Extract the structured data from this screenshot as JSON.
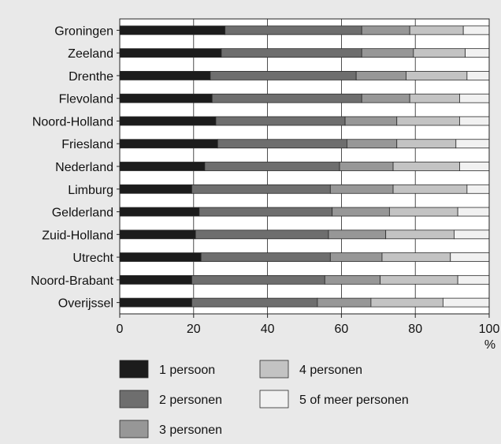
{
  "chart_data": {
    "type": "bar",
    "orientation": "horizontal",
    "stacked": true,
    "categories": [
      "Groningen",
      "Zeeland",
      "Drenthe",
      "Flevoland",
      "Noord-Holland",
      "Friesland",
      "Nederland",
      "Limburg",
      "Gelderland",
      "Zuid-Holland",
      "Utrecht",
      "Noord-Brabant",
      "Overijssel"
    ],
    "series": [
      {
        "name": "1 persoon",
        "color": "#1c1c1c",
        "values": [
          28.5,
          27.5,
          24.5,
          25.0,
          26.0,
          26.5,
          23.0,
          19.5,
          21.5,
          20.5,
          22.0,
          19.5,
          19.5
        ]
      },
      {
        "name": "2 personen",
        "color": "#6e6e6e",
        "values": [
          37.0,
          38.0,
          39.5,
          40.5,
          35.0,
          35.0,
          36.5,
          37.5,
          36.0,
          36.0,
          35.0,
          36.0,
          34.0
        ]
      },
      {
        "name": "3 personen",
        "color": "#979797",
        "values": [
          13.0,
          14.0,
          13.5,
          13.0,
          14.0,
          13.5,
          14.5,
          17.0,
          15.5,
          15.5,
          14.0,
          15.0,
          14.5
        ]
      },
      {
        "name": "4 personen",
        "color": "#c3c3c3",
        "values": [
          14.5,
          14.0,
          16.5,
          13.5,
          17.0,
          16.0,
          18.0,
          20.0,
          18.5,
          18.5,
          18.5,
          21.0,
          19.5
        ]
      },
      {
        "name": "5 of meer personen",
        "color": "#f1f1f1",
        "values": [
          7.0,
          6.5,
          6.0,
          8.0,
          8.0,
          9.0,
          8.0,
          6.0,
          8.5,
          9.5,
          10.5,
          8.5,
          12.5
        ]
      }
    ],
    "x_axis": {
      "ticks": [
        0,
        20,
        40,
        60,
        80,
        100
      ],
      "unit_label": "%",
      "xlim": [
        0,
        100
      ]
    },
    "grid": "vertical",
    "legend_position": "bottom"
  }
}
